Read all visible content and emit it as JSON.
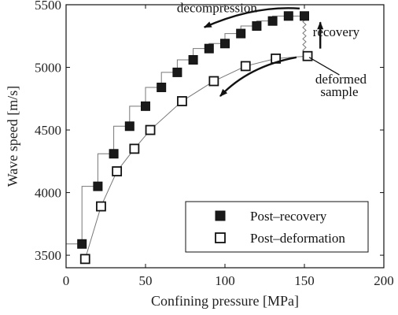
{
  "chart_data": {
    "type": "scatter",
    "title": "",
    "xlabel": "Confining pressure [MPa]",
    "ylabel": "Wave speed [m/s]",
    "xlim": [
      0,
      200
    ],
    "ylim": [
      3400,
      5500
    ],
    "xticks": [
      0,
      50,
      100,
      150,
      200
    ],
    "yticks": [
      3500,
      4000,
      4500,
      5000,
      5500
    ],
    "grid": false,
    "legend_position": "bottom-right",
    "colors": {
      "post_recovery": "#1a1a1a",
      "post_deformation": "#ffffff",
      "connector": "#777777",
      "axis": "#111111"
    },
    "series": [
      {
        "name": "Post–recovery",
        "marker": "filled-square",
        "points": [
          [
            10,
            3590
          ],
          [
            20,
            4050
          ],
          [
            30,
            4310
          ],
          [
            40,
            4530
          ],
          [
            50,
            4690
          ],
          [
            60,
            4840
          ],
          [
            70,
            4960
          ],
          [
            80,
            5060
          ],
          [
            90,
            5150
          ],
          [
            100,
            5190
          ],
          [
            110,
            5270
          ],
          [
            120,
            5330
          ],
          [
            130,
            5370
          ],
          [
            140,
            5410
          ],
          [
            150,
            5410
          ]
        ]
      },
      {
        "name": "Post–deformation",
        "marker": "open-square",
        "points": [
          [
            12,
            3470
          ],
          [
            22,
            3890
          ],
          [
            32,
            4170
          ],
          [
            43,
            4350
          ],
          [
            53,
            4500
          ],
          [
            73,
            4730
          ],
          [
            93,
            4890
          ],
          [
            113,
            5010
          ],
          [
            132,
            5070
          ],
          [
            152,
            5090
          ]
        ]
      }
    ],
    "annotations": [
      {
        "text": "decompression",
        "x": 95,
        "y": 5440
      },
      {
        "text": "recovery",
        "x": 170,
        "y": 5250
      },
      {
        "text": "deformed",
        "x": 173,
        "y": 4870
      },
      {
        "text": "sample",
        "x": 172,
        "y": 4770
      }
    ],
    "arrows": [
      {
        "name": "decompression-arrow",
        "from": [
          147,
          5470
        ],
        "ctrl": [
          118,
          5495
        ],
        "to": [
          87,
          5320
        ]
      },
      {
        "name": "recovery-arrow",
        "from": [
          160,
          5150
        ],
        "to": [
          160,
          5360
        ]
      },
      {
        "name": "deformation-arrow",
        "from": [
          145,
          5080
        ],
        "ctrl": [
          115,
          5010
        ],
        "to": [
          97,
          4770
        ]
      },
      {
        "name": "deformed-sample-pointer",
        "from": [
          153,
          5080
        ],
        "to": [
          172,
          4940
        ]
      }
    ]
  }
}
